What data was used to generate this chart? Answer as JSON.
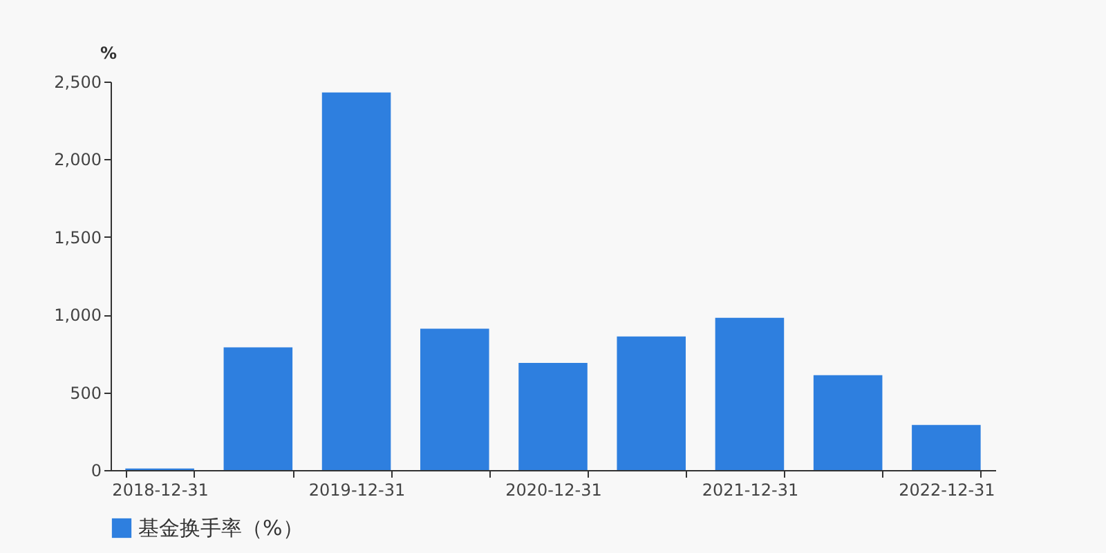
{
  "chart_data": {
    "type": "bar",
    "ylabel": "%",
    "categories": [
      "2018-12-31",
      null,
      "2019-12-31",
      null,
      "2020-12-31",
      null,
      "2021-12-31",
      null,
      "2022-12-31"
    ],
    "series": [
      {
        "name": "基金换手率（%）",
        "color": "#2e7fdf",
        "values": [
          10,
          790,
          2430,
          910,
          690,
          860,
          980,
          610,
          290
        ]
      }
    ],
    "ylim": [
      0,
      2500
    ],
    "yticks": [
      0,
      500,
      {
        "value": 1000,
        "label": "1,000"
      },
      {
        "value": 1500,
        "label": "1,500"
      },
      {
        "value": 2000,
        "label": "2,000"
      },
      {
        "value": 2500,
        "label": "2,500"
      }
    ],
    "grid": false,
    "legend": "bottom"
  }
}
